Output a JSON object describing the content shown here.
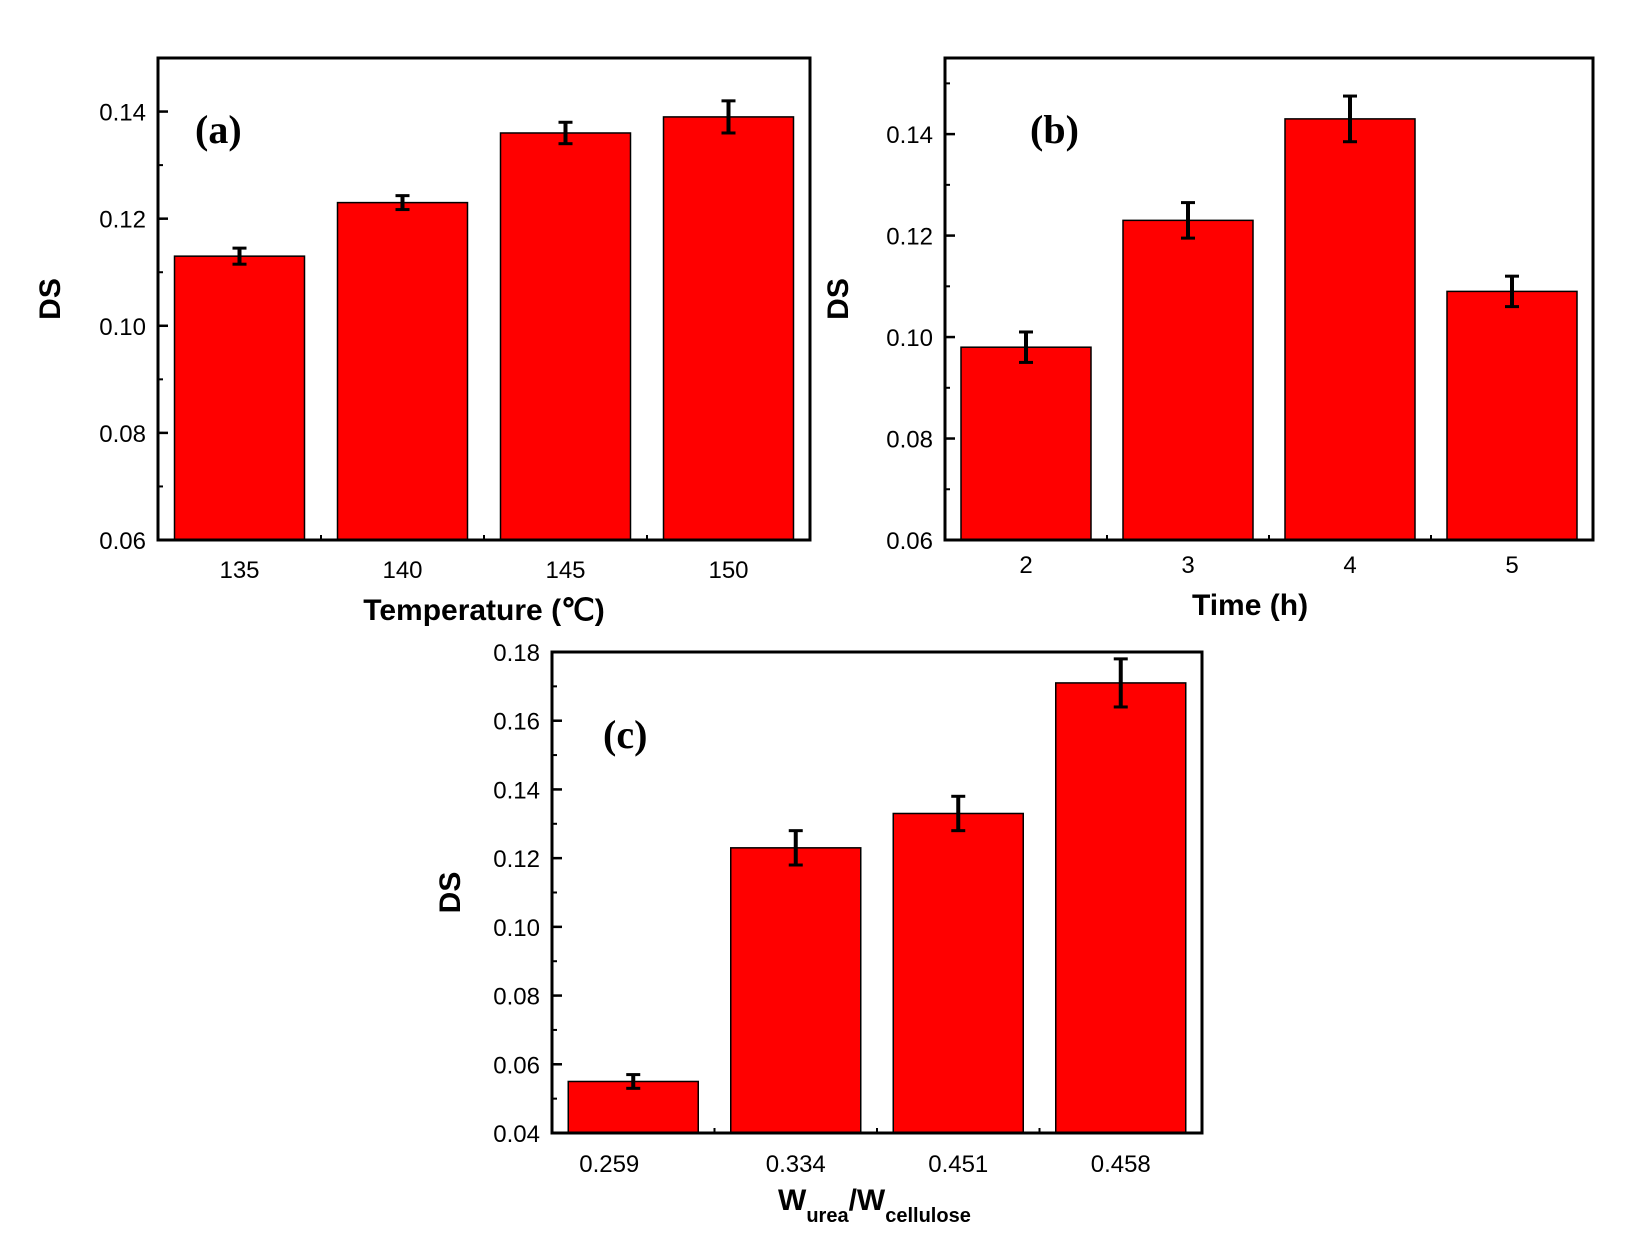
{
  "colors": {
    "bar_fill": "#ff0000",
    "bar_stroke": "#000000",
    "axis": "#000000",
    "background": "#ffffff"
  },
  "chart_data": [
    {
      "id": "a",
      "type": "bar",
      "panel_label": "(a)",
      "categories": [
        "135",
        "140",
        "145",
        "150"
      ],
      "values": [
        0.113,
        0.123,
        0.136,
        0.139
      ],
      "errors": [
        0.0015,
        0.0013,
        0.002,
        0.003
      ],
      "xlabel": "Temperature (℃)",
      "xlabel_sub": [],
      "ylabel": "DS",
      "ylim": [
        0.06,
        0.15
      ],
      "yticks": [
        0.06,
        0.08,
        0.1,
        0.12,
        0.14
      ],
      "ytick_labels": [
        "0.06",
        "0.08",
        "0.10",
        "0.12",
        "0.14"
      ],
      "yminor": 0.01
    },
    {
      "id": "b",
      "type": "bar",
      "panel_label": "(b)",
      "categories": [
        "2",
        "3",
        "4",
        "5"
      ],
      "values": [
        0.098,
        0.123,
        0.143,
        0.109
      ],
      "errors": [
        0.003,
        0.0035,
        0.0045,
        0.003
      ],
      "xlabel": "Time (h)",
      "xlabel_sub": [],
      "ylabel": "DS",
      "ylim": [
        0.06,
        0.155
      ],
      "yticks": [
        0.06,
        0.08,
        0.1,
        0.12,
        0.14
      ],
      "ytick_labels": [
        "0.06",
        "0.08",
        "0.10",
        "0.12",
        "0.14"
      ],
      "yminor": 0.01
    },
    {
      "id": "c",
      "type": "bar",
      "panel_label": "(c)",
      "categories": [
        "0.259",
        "0.334",
        "0.451",
        "0.458"
      ],
      "values": [
        0.055,
        0.123,
        0.133,
        0.171
      ],
      "errors": [
        0.002,
        0.005,
        0.005,
        0.007
      ],
      "xlabel": "",
      "xlabel_sub": [
        {
          "text": "W",
          "sub": "urea"
        },
        {
          "text": "/W",
          "sub": "cellulose"
        }
      ],
      "ylabel": "DS",
      "ylim": [
        0.04,
        0.18
      ],
      "yticks": [
        0.04,
        0.06,
        0.08,
        0.1,
        0.12,
        0.14,
        0.16,
        0.18
      ],
      "ytick_labels": [
        "0.04",
        "0.06",
        "0.08",
        "0.10",
        "0.12",
        "0.14",
        "0.16",
        "0.18"
      ],
      "yminor": 0.01
    }
  ]
}
